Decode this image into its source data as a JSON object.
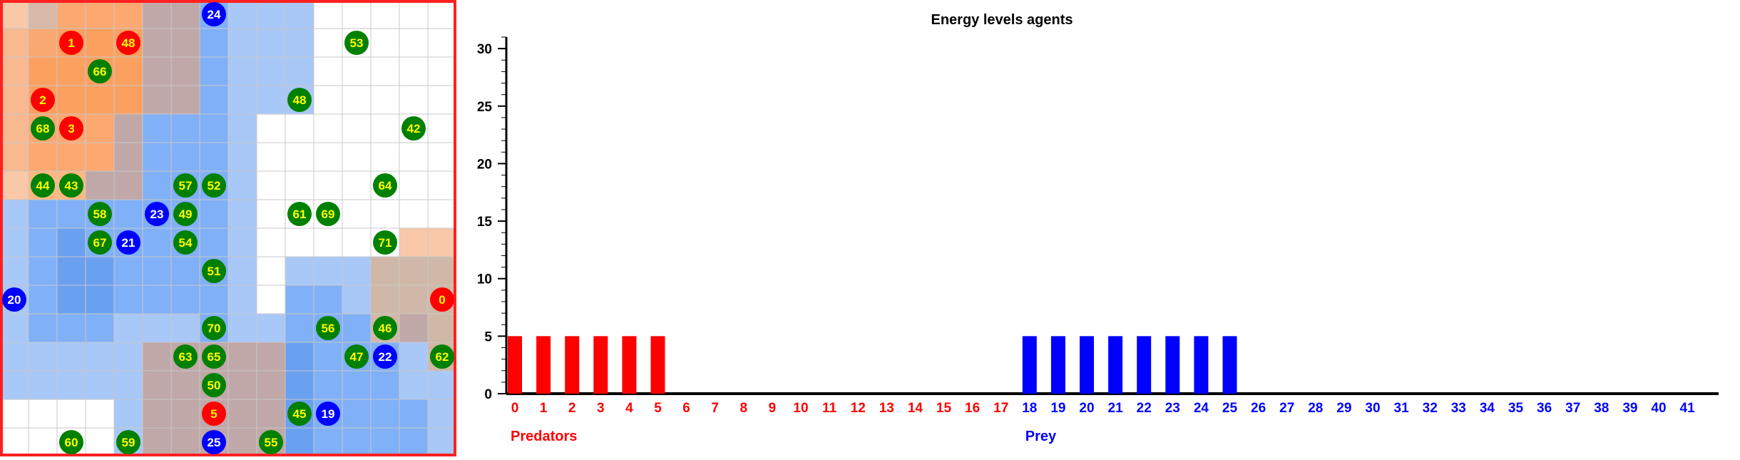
{
  "grid": {
    "rows": 16,
    "cols": 16,
    "cell_colors": [
      [
        "#f8c8a8",
        "#d8b8a8",
        "#fca870",
        "#fca870",
        "#fca870",
        "#c0a8a8",
        "#c0a8a8",
        "#80b0f8",
        "#a8c8f8",
        "#a8c8f8",
        "#a8c8f8",
        "#ffffff",
        "#ffffff",
        "#ffffff",
        "#ffffff",
        "#ffffff"
      ],
      [
        "#f8b890",
        "#f8a870",
        "#fca060",
        "#fca060",
        "#fca060",
        "#c0a8a8",
        "#c0a8a8",
        "#80b0f8",
        "#a8c8f8",
        "#a8c8f8",
        "#a8c8f8",
        "#ffffff",
        "#ffffff",
        "#ffffff",
        "#ffffff",
        "#ffffff"
      ],
      [
        "#f8b890",
        "#fca060",
        "#fca060",
        "#fca060",
        "#fca060",
        "#c0a8a8",
        "#c0a8a8",
        "#80b0f8",
        "#a8c8f8",
        "#a8c8f8",
        "#a8c8f8",
        "#ffffff",
        "#ffffff",
        "#ffffff",
        "#ffffff",
        "#ffffff"
      ],
      [
        "#f8b890",
        "#fca060",
        "#fca060",
        "#fca060",
        "#fca060",
        "#c0a8a8",
        "#c0a8a8",
        "#80b0f8",
        "#a8c8f8",
        "#a8c8f8",
        "#a8c8f8",
        "#ffffff",
        "#ffffff",
        "#ffffff",
        "#ffffff",
        "#ffffff"
      ],
      [
        "#f8b890",
        "#fca870",
        "#fca870",
        "#fca870",
        "#c0a8a8",
        "#80b0f8",
        "#80b0f8",
        "#80b0f8",
        "#a8c8f8",
        "#ffffff",
        "#ffffff",
        "#ffffff",
        "#ffffff",
        "#ffffff",
        "#ffffff",
        "#ffffff"
      ],
      [
        "#f8b890",
        "#fca870",
        "#fca870",
        "#fca870",
        "#c0a8a8",
        "#80b0f8",
        "#80b0f8",
        "#80b0f8",
        "#a8c8f8",
        "#ffffff",
        "#ffffff",
        "#ffffff",
        "#ffffff",
        "#ffffff",
        "#ffffff",
        "#ffffff"
      ],
      [
        "#f8c8a8",
        "#fcb880",
        "#fcb880",
        "#c0a8a8",
        "#c0a8a8",
        "#80b0f8",
        "#80b0f8",
        "#80b0f8",
        "#a8c8f8",
        "#ffffff",
        "#ffffff",
        "#ffffff",
        "#ffffff",
        "#ffffff",
        "#ffffff",
        "#ffffff"
      ],
      [
        "#a8c8f8",
        "#80b0f8",
        "#80b0f8",
        "#80b0f8",
        "#80b0f8",
        "#80b0f8",
        "#80b0f8",
        "#80b0f8",
        "#a8c8f8",
        "#ffffff",
        "#ffffff",
        "#ffffff",
        "#ffffff",
        "#ffffff",
        "#ffffff",
        "#ffffff"
      ],
      [
        "#a8c8f8",
        "#80b0f8",
        "#6aa0f0",
        "#80b0f8",
        "#80b0f8",
        "#80b0f8",
        "#80b0f8",
        "#80b0f8",
        "#a8c8f8",
        "#ffffff",
        "#ffffff",
        "#ffffff",
        "#ffffff",
        "#ffffff",
        "#f8c8a8",
        "#f8c8a8"
      ],
      [
        "#a8c8f8",
        "#80b0f8",
        "#6aa0f0",
        "#6aa0f0",
        "#80b0f8",
        "#80b0f8",
        "#80b0f8",
        "#80b0f8",
        "#a8c8f8",
        "#ffffff",
        "#a8c8f8",
        "#a8c8f8",
        "#a8c8f8",
        "#d0b8a8",
        "#d0b8a8",
        "#d0b8a8"
      ],
      [
        "#a8c8f8",
        "#80b0f8",
        "#6aa0f0",
        "#6aa0f0",
        "#80b0f8",
        "#80b0f8",
        "#80b0f8",
        "#80b0f8",
        "#a8c8f8",
        "#ffffff",
        "#80b0f8",
        "#80b0f8",
        "#a8c8f8",
        "#d0b8a8",
        "#d0b8a8",
        "#d0b8a8"
      ],
      [
        "#a8c8f8",
        "#80b0f8",
        "#80b0f8",
        "#80b0f8",
        "#a8c8f8",
        "#a8c8f8",
        "#a8c8f8",
        "#80b0f8",
        "#a8c8f8",
        "#a8c8f8",
        "#80b0f8",
        "#80b0f8",
        "#80b0f8",
        "#d0b8a8",
        "#c0a8a8",
        "#d0b8a8"
      ],
      [
        "#a8c8f8",
        "#a8c8f8",
        "#a8c8f8",
        "#a8c8f8",
        "#a8c8f8",
        "#c0a8a8",
        "#c0a8a8",
        "#c0a8a8",
        "#c0a8a8",
        "#c0a8a8",
        "#6aa0f0",
        "#80b0f8",
        "#80b0f8",
        "#80b0f8",
        "#a8c8f8",
        "#d0b8a8"
      ],
      [
        "#a8c8f8",
        "#a8c8f8",
        "#a8c8f8",
        "#a8c8f8",
        "#a8c8f8",
        "#c0a8a8",
        "#c0a8a8",
        "#c0a8a8",
        "#c0a8a8",
        "#c0a8a8",
        "#6aa0f0",
        "#80b0f8",
        "#80b0f8",
        "#80b0f8",
        "#a8c8f8",
        "#a8c8f8"
      ],
      [
        "#ffffff",
        "#ffffff",
        "#ffffff",
        "#ffffff",
        "#a8c8f8",
        "#c0a8a8",
        "#c0a8a8",
        "#c0a8a8",
        "#c0a8a8",
        "#c0a8a8",
        "#6aa0f0",
        "#80b0f8",
        "#80b0f8",
        "#80b0f8",
        "#80b0f8",
        "#a8c8f8"
      ],
      [
        "#ffffff",
        "#ffffff",
        "#ffffff",
        "#ffffff",
        "#a8c8f8",
        "#c0a8a8",
        "#c0a8a8",
        "#c0a8a8",
        "#c0a8a8",
        "#c0a8a8",
        "#6aa0f0",
        "#80b0f8",
        "#80b0f8",
        "#80b0f8",
        "#80b0f8",
        "#a8c8f8"
      ]
    ],
    "agents": [
      {
        "id": "24",
        "kind": "prey",
        "row": 0,
        "col": 7
      },
      {
        "id": "1",
        "kind": "predator",
        "row": 1,
        "col": 2
      },
      {
        "id": "48",
        "kind": "predator",
        "row": 1,
        "col": 4
      },
      {
        "id": "53",
        "kind": "plant",
        "row": 1,
        "col": 12
      },
      {
        "id": "66",
        "kind": "plant",
        "row": 2,
        "col": 3
      },
      {
        "id": "2",
        "kind": "predator",
        "row": 3,
        "col": 1
      },
      {
        "id": "48",
        "kind": "plant",
        "row": 3,
        "col": 10
      },
      {
        "id": "68",
        "kind": "plant",
        "row": 4,
        "col": 1
      },
      {
        "id": "3",
        "kind": "predator",
        "row": 4,
        "col": 2
      },
      {
        "id": "42",
        "kind": "plant",
        "row": 4,
        "col": 14
      },
      {
        "id": "44",
        "kind": "plant",
        "row": 6,
        "col": 1
      },
      {
        "id": "43",
        "kind": "plant",
        "row": 6,
        "col": 2
      },
      {
        "id": "57",
        "kind": "plant",
        "row": 6,
        "col": 6
      },
      {
        "id": "52",
        "kind": "plant",
        "row": 6,
        "col": 7
      },
      {
        "id": "64",
        "kind": "plant",
        "row": 6,
        "col": 13
      },
      {
        "id": "58",
        "kind": "plant",
        "row": 7,
        "col": 3
      },
      {
        "id": "23",
        "kind": "prey",
        "row": 7,
        "col": 5
      },
      {
        "id": "49",
        "kind": "plant",
        "row": 7,
        "col": 6
      },
      {
        "id": "61",
        "kind": "plant",
        "row": 7,
        "col": 10
      },
      {
        "id": "69",
        "kind": "plant",
        "row": 7,
        "col": 11
      },
      {
        "id": "67",
        "kind": "plant",
        "row": 8,
        "col": 3
      },
      {
        "id": "21",
        "kind": "prey",
        "row": 8,
        "col": 4
      },
      {
        "id": "54",
        "kind": "plant",
        "row": 8,
        "col": 6
      },
      {
        "id": "71",
        "kind": "plant",
        "row": 8,
        "col": 13
      },
      {
        "id": "51",
        "kind": "plant",
        "row": 9,
        "col": 7
      },
      {
        "id": "20",
        "kind": "prey",
        "row": 10,
        "col": 0
      },
      {
        "id": "0",
        "kind": "predator",
        "row": 10,
        "col": 15
      },
      {
        "id": "70",
        "kind": "plant",
        "row": 11,
        "col": 7
      },
      {
        "id": "56",
        "kind": "plant",
        "row": 11,
        "col": 11
      },
      {
        "id": "46",
        "kind": "plant",
        "row": 11,
        "col": 13
      },
      {
        "id": "63",
        "kind": "plant",
        "row": 12,
        "col": 6
      },
      {
        "id": "65",
        "kind": "plant",
        "row": 12,
        "col": 7
      },
      {
        "id": "47",
        "kind": "plant",
        "row": 12,
        "col": 12
      },
      {
        "id": "22",
        "kind": "prey",
        "row": 12,
        "col": 13
      },
      {
        "id": "62",
        "kind": "plant",
        "row": 12,
        "col": 15
      },
      {
        "id": "50",
        "kind": "plant",
        "row": 13,
        "col": 7
      },
      {
        "id": "5",
        "kind": "predator",
        "row": 14,
        "col": 7
      },
      {
        "id": "45",
        "kind": "plant",
        "row": 14,
        "col": 10
      },
      {
        "id": "19",
        "kind": "prey",
        "row": 14,
        "col": 11
      },
      {
        "id": "60",
        "kind": "plant",
        "row": 15,
        "col": 2
      },
      {
        "id": "59",
        "kind": "plant",
        "row": 15,
        "col": 4
      },
      {
        "id": "25",
        "kind": "prey",
        "row": 15,
        "col": 7
      },
      {
        "id": "55",
        "kind": "plant",
        "row": 15,
        "col": 9
      }
    ],
    "colors": {
      "predator": "#ff0000",
      "prey": "#0000ff",
      "plant": "#008000",
      "predator_text": "#ffff00",
      "prey_text": "#ffffff",
      "plant_text": "#ffff00",
      "border": "#ff2020",
      "grid_line": "#c8c8c8"
    }
  },
  "chart_data": {
    "type": "bar",
    "title": "Energy levels agents",
    "categories": [
      "0",
      "1",
      "2",
      "3",
      "4",
      "5",
      "6",
      "7",
      "8",
      "9",
      "10",
      "11",
      "12",
      "13",
      "14",
      "15",
      "16",
      "17",
      "18",
      "19",
      "20",
      "21",
      "22",
      "23",
      "24",
      "25",
      "26",
      "27",
      "28",
      "29",
      "30",
      "31",
      "32",
      "33",
      "34",
      "35",
      "36",
      "37",
      "38",
      "39",
      "40",
      "41"
    ],
    "values": [
      5,
      5,
      5,
      5,
      5,
      5,
      0,
      0,
      0,
      0,
      0,
      0,
      0,
      0,
      0,
      0,
      0,
      0,
      5,
      5,
      5,
      5,
      5,
      5,
      5,
      5,
      0,
      0,
      0,
      0,
      0,
      0,
      0,
      0,
      0,
      0,
      0,
      0,
      0,
      0,
      0,
      0
    ],
    "ylim": [
      0,
      31
    ],
    "yticks": [
      0,
      5,
      10,
      15,
      20,
      25,
      30
    ],
    "groups": [
      {
        "label": "Predators",
        "from": 0,
        "to": 17,
        "color": "#ff0000"
      },
      {
        "label": "Prey",
        "from": 18,
        "to": 41,
        "color": "#0000ff"
      }
    ],
    "grid": false,
    "legend": "none"
  }
}
